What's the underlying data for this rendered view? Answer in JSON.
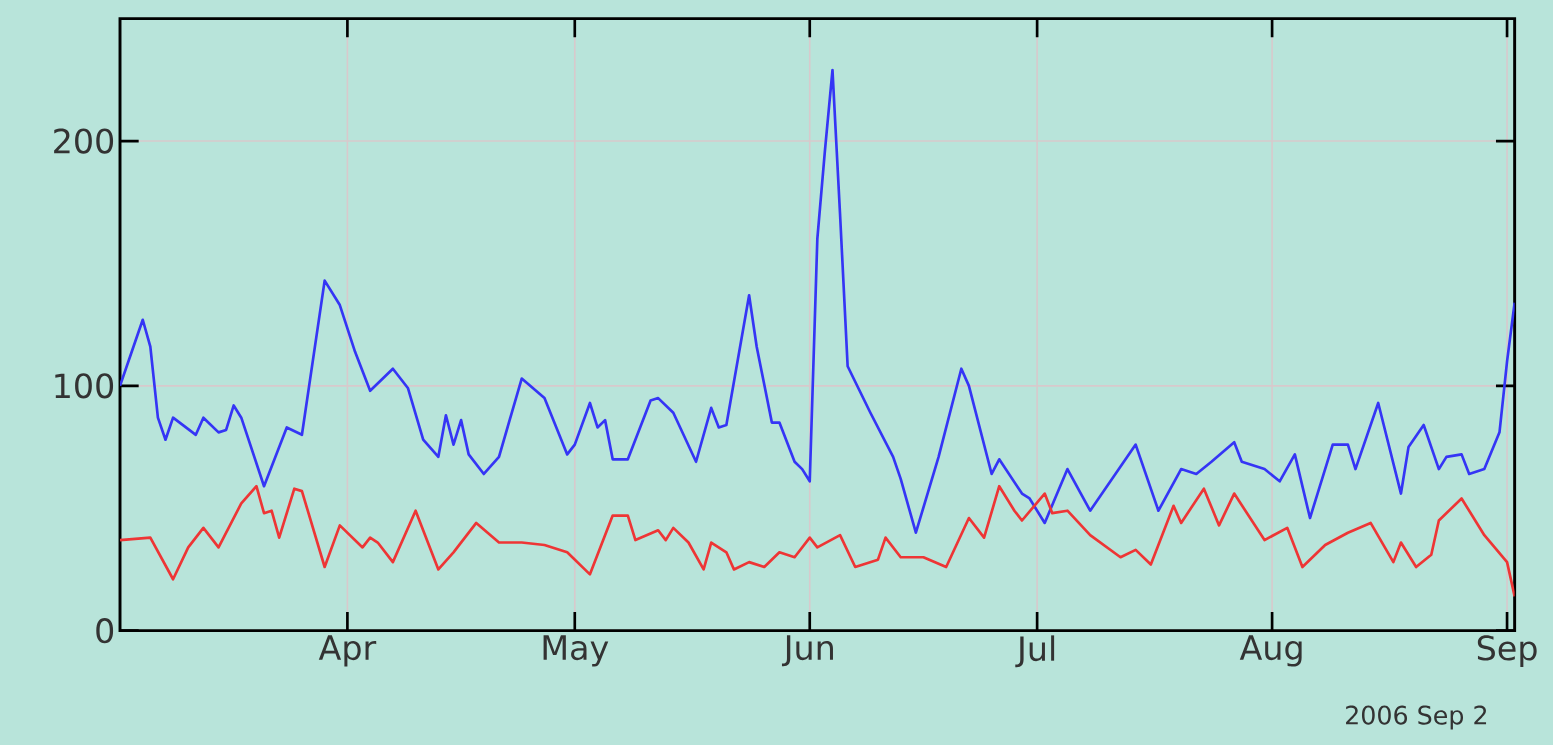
{
  "chart_data": {
    "type": "line",
    "xlim": [
      "2006-03-02",
      "2006-09-02"
    ],
    "ylim": [
      0,
      250
    ],
    "xticks": [
      {
        "value": "2006-04-01",
        "label": "Apr"
      },
      {
        "value": "2006-05-01",
        "label": "May"
      },
      {
        "value": "2006-06-01",
        "label": "Jun"
      },
      {
        "value": "2006-07-01",
        "label": "Jul"
      },
      {
        "value": "2006-08-01",
        "label": "Aug"
      },
      {
        "value": "2006-09-01",
        "label": "Sep"
      }
    ],
    "yticks": [
      0,
      100,
      200
    ],
    "grid": true,
    "annotations": [
      "2006 Sep 2"
    ],
    "series": [
      {
        "color": "#3535f5",
        "x": [
          "2006-03-02",
          "2006-03-04",
          "2006-03-05",
          "2006-03-06",
          "2006-03-07",
          "2006-03-08",
          "2006-03-09",
          "2006-03-12",
          "2006-03-13",
          "2006-03-15",
          "2006-03-16",
          "2006-03-17",
          "2006-03-18",
          "2006-03-21",
          "2006-03-24",
          "2006-03-26",
          "2006-03-29",
          "2006-03-31",
          "2006-04-02",
          "2006-04-04",
          "2006-04-07",
          "2006-04-09",
          "2006-04-11",
          "2006-04-13",
          "2006-04-14",
          "2006-04-15",
          "2006-04-16",
          "2006-04-17",
          "2006-04-19",
          "2006-04-21",
          "2006-04-24",
          "2006-04-27",
          "2006-04-30",
          "2006-05-01",
          "2006-05-03",
          "2006-05-04",
          "2006-05-05",
          "2006-05-06",
          "2006-05-08",
          "2006-05-11",
          "2006-05-12",
          "2006-05-14",
          "2006-05-17",
          "2006-05-19",
          "2006-05-20",
          "2006-05-21",
          "2006-05-24",
          "2006-05-25",
          "2006-05-27",
          "2006-05-28",
          "2006-05-30",
          "2006-05-31",
          "2006-06-01",
          "2006-06-02",
          "2006-06-03",
          "2006-06-04",
          "2006-06-05",
          "2006-06-06",
          "2006-06-09",
          "2006-06-12",
          "2006-06-13",
          "2006-06-15",
          "2006-06-18",
          "2006-06-21",
          "2006-06-22",
          "2006-06-25",
          "2006-06-26",
          "2006-06-29",
          "2006-06-30",
          "2006-07-02",
          "2006-07-05",
          "2006-07-08",
          "2006-07-14",
          "2006-07-17",
          "2006-07-20",
          "2006-07-22",
          "2006-07-24",
          "2006-07-27",
          "2006-07-28",
          "2006-07-31",
          "2006-08-02",
          "2006-08-04",
          "2006-08-06",
          "2006-08-09",
          "2006-08-11",
          "2006-08-12",
          "2006-08-15",
          "2006-08-18",
          "2006-08-19",
          "2006-08-21",
          "2006-08-23",
          "2006-08-24",
          "2006-08-26",
          "2006-08-27",
          "2006-08-29",
          "2006-08-31",
          "2006-09-01",
          "2006-09-02"
        ],
        "values": [
          100,
          118,
          127,
          116,
          87,
          78,
          87,
          80,
          87,
          81,
          82,
          92,
          87,
          59,
          83,
          80,
          143,
          133,
          114,
          98,
          107,
          99,
          78,
          71,
          88,
          76,
          86,
          72,
          64,
          71,
          103,
          95,
          72,
          76,
          93,
          83,
          86,
          70,
          70,
          94,
          95,
          89,
          69,
          91,
          83,
          84,
          137,
          116,
          85,
          85,
          69,
          66,
          61,
          160,
          196,
          229,
          170,
          108,
          89,
          71,
          62,
          40,
          71,
          107,
          100,
          64,
          70,
          56,
          54,
          44,
          66,
          49,
          76,
          49,
          66,
          64,
          69,
          77,
          69,
          66,
          61,
          72,
          46,
          76,
          76,
          66,
          93,
          56,
          75,
          84,
          66,
          71,
          72,
          64,
          66,
          81,
          110,
          134
        ]
      },
      {
        "color": "#ee3535",
        "x": [
          "2006-03-02",
          "2006-03-06",
          "2006-03-09",
          "2006-03-11",
          "2006-03-13",
          "2006-03-15",
          "2006-03-18",
          "2006-03-20",
          "2006-03-21",
          "2006-03-22",
          "2006-03-23",
          "2006-03-25",
          "2006-03-26",
          "2006-03-29",
          "2006-03-31",
          "2006-04-03",
          "2006-04-04",
          "2006-04-05",
          "2006-04-07",
          "2006-04-10",
          "2006-04-13",
          "2006-04-15",
          "2006-04-18",
          "2006-04-21",
          "2006-04-24",
          "2006-04-27",
          "2006-04-30",
          "2006-05-03",
          "2006-05-06",
          "2006-05-08",
          "2006-05-09",
          "2006-05-12",
          "2006-05-13",
          "2006-05-14",
          "2006-05-16",
          "2006-05-18",
          "2006-05-19",
          "2006-05-21",
          "2006-05-22",
          "2006-05-24",
          "2006-05-26",
          "2006-05-28",
          "2006-05-30",
          "2006-06-01",
          "2006-06-02",
          "2006-06-05",
          "2006-06-07",
          "2006-06-10",
          "2006-06-11",
          "2006-06-13",
          "2006-06-16",
          "2006-06-19",
          "2006-06-22",
          "2006-06-24",
          "2006-06-26",
          "2006-06-28",
          "2006-06-29",
          "2006-07-02",
          "2006-07-03",
          "2006-07-05",
          "2006-07-08",
          "2006-07-12",
          "2006-07-14",
          "2006-07-16",
          "2006-07-19",
          "2006-07-20",
          "2006-07-23",
          "2006-07-25",
          "2006-07-27",
          "2006-07-31",
          "2006-08-03",
          "2006-08-05",
          "2006-08-08",
          "2006-08-11",
          "2006-08-14",
          "2006-08-17",
          "2006-08-18",
          "2006-08-20",
          "2006-08-22",
          "2006-08-23",
          "2006-08-26",
          "2006-08-29",
          "2006-09-01",
          "2006-09-02"
        ],
        "values": [
          37,
          38,
          21,
          34,
          42,
          34,
          52,
          59,
          48,
          49,
          38,
          58,
          57,
          26,
          43,
          34,
          38,
          36,
          28,
          49,
          25,
          32,
          44,
          36,
          36,
          35,
          32,
          23,
          47,
          47,
          37,
          41,
          37,
          42,
          36,
          25,
          36,
          32,
          25,
          28,
          26,
          32,
          30,
          38,
          34,
          39,
          26,
          29,
          38,
          30,
          30,
          26,
          46,
          38,
          59,
          49,
          45,
          56,
          48,
          49,
          39,
          30,
          33,
          27,
          51,
          44,
          58,
          43,
          56,
          37,
          42,
          26,
          35,
          40,
          44,
          28,
          36,
          26,
          31,
          45,
          54,
          39,
          28,
          14
        ]
      }
    ]
  }
}
